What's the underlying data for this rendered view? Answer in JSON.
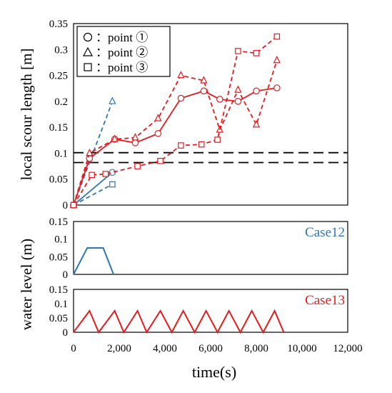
{
  "colors": {
    "blue": "#2e75b6",
    "red": "#e8191c",
    "black": "#000000"
  },
  "chart_data": [
    {
      "type": "line",
      "ylabel": "local scour length [m]",
      "xlim": [
        0,
        12000
      ],
      "ylim": [
        0,
        0.35
      ],
      "yticks": [
        "0",
        "0.05",
        "0.1",
        "0.15",
        "0.2",
        "0.25",
        "0.3",
        "0.35"
      ],
      "ytick_values": [
        0,
        0.05,
        0.1,
        0.15,
        0.2,
        0.25,
        0.3,
        0.35
      ],
      "legend": {
        "position": "top-left",
        "entries": [
          {
            "marker": "circle",
            "label": "：point ①"
          },
          {
            "marker": "triangle",
            "label": "：point ②"
          },
          {
            "marker": "square",
            "label": "：point ③"
          }
        ]
      },
      "reference_lines": [
        0.101,
        0.082
      ],
      "series": [
        {
          "case": "Case12",
          "point": 1,
          "marker": "circle",
          "style": "solid",
          "color": "blue",
          "x": [
            0,
            1700
          ],
          "y": [
            0,
            0.063
          ]
        },
        {
          "case": "Case12",
          "point": 2,
          "marker": "triangle",
          "style": "dashed",
          "color": "blue",
          "x": [
            0,
            1700
          ],
          "y": [
            0,
            0.2
          ]
        },
        {
          "case": "Case12",
          "point": 3,
          "marker": "square",
          "style": "dashed",
          "color": "blue",
          "x": [
            0,
            1700
          ],
          "y": [
            0,
            0.04
          ]
        },
        {
          "case": "Case13",
          "point": 1,
          "marker": "circle",
          "style": "solid",
          "color": "red",
          "x": [
            0,
            700,
            1800,
            2700,
            3700,
            4700,
            5700,
            6400,
            7200,
            8000,
            8900
          ],
          "y": [
            0,
            0.09,
            0.127,
            0.12,
            0.138,
            0.206,
            0.22,
            0.204,
            0.2,
            0.22,
            0.226
          ]
        },
        {
          "case": "Case13",
          "point": 2,
          "marker": "triangle",
          "style": "dashed",
          "color": "red",
          "x": [
            0,
            700,
            1800,
            2700,
            3700,
            4700,
            5700,
            6400,
            7200,
            8000,
            8900
          ],
          "y": [
            0,
            0.1,
            0.127,
            0.13,
            0.167,
            0.25,
            0.24,
            0.145,
            0.222,
            0.155,
            0.279
          ]
        },
        {
          "case": "Case13",
          "point": 3,
          "marker": "square",
          "style": "dashed",
          "color": "red",
          "x": [
            0,
            800,
            1400,
            2800,
            3800,
            4700,
            5600,
            6300,
            7200,
            8000,
            8900
          ],
          "y": [
            0,
            0.058,
            0.06,
            0.075,
            0.085,
            0.115,
            0.117,
            0.126,
            0.297,
            0.293,
            0.325
          ]
        }
      ]
    },
    {
      "type": "line",
      "label": "Case12",
      "color": "blue",
      "xlim": [
        0,
        12000
      ],
      "ylim": [
        0,
        0.15
      ],
      "yticks": [
        "0",
        "0.05",
        "0.1",
        "0.15"
      ],
      "ytick_values": [
        0,
        0.05,
        0.1,
        0.15
      ],
      "x": [
        0,
        600,
        1300,
        1750
      ],
      "y": [
        0,
        0.075,
        0.075,
        0
      ]
    },
    {
      "type": "line",
      "label": "Case13",
      "color": "red",
      "xlim": [
        0,
        12000
      ],
      "ylim": [
        0,
        0.15
      ],
      "yticks": [
        "0",
        "0.05",
        "0.1",
        "0.15"
      ],
      "ytick_values": [
        0,
        0.05,
        0.1,
        0.15
      ],
      "x": [
        0,
        700,
        1100,
        1800,
        2200,
        2800,
        3200,
        3800,
        4300,
        4800,
        5300,
        5800,
        6300,
        6800,
        7300,
        7800,
        8300,
        8800,
        9200
      ],
      "y": [
        0,
        0.075,
        0,
        0.075,
        0,
        0.075,
        0,
        0.075,
        0,
        0.075,
        0,
        0.075,
        0,
        0.075,
        0,
        0.075,
        0,
        0.075,
        0
      ]
    }
  ],
  "shared_axis": {
    "xlabel": "time(s)",
    "xticks": [
      "0",
      "2,000",
      "4,000",
      "6,000",
      "8,000",
      "10,000",
      "12,000"
    ],
    "xtick_values": [
      0,
      2000,
      4000,
      6000,
      8000,
      10000,
      12000
    ]
  },
  "lower_ylabel": "water level (m)"
}
